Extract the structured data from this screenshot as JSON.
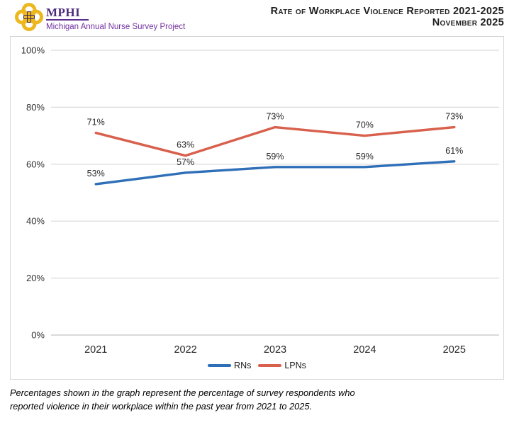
{
  "header": {
    "org": "MPHI",
    "project": "Michigan Annual Nurse Survey Project",
    "title_line1": "Rate of Workplace Violence Reported 2021-2025",
    "title_line2": "November 2025"
  },
  "colors": {
    "rn_blue": "#2E6FB8",
    "lpn_red": "#D8604C",
    "gridline": "#D9D9D9",
    "axis_line": "#C4C4C4",
    "tick_text": "#333333",
    "label_text": "#262626",
    "logo_gold": "#EDB71E",
    "logo_purple": "#4B2A7B",
    "project_purple": "#7030A0"
  },
  "chart_data": {
    "type": "line",
    "categories": [
      "2021",
      "2022",
      "2023",
      "2024",
      "2025"
    ],
    "series": [
      {
        "name": "RNs",
        "color": "#2E6FB8",
        "values": [
          53,
          57,
          59,
          59,
          61
        ]
      },
      {
        "name": "LPNs",
        "color": "#D8604C",
        "values": [
          71,
          63,
          73,
          70,
          73
        ]
      }
    ],
    "data_labels": [
      [
        "53%",
        "57%",
        "59%",
        "59%",
        "61%"
      ],
      [
        "71%",
        "63%",
        "73%",
        "70%",
        "73%"
      ]
    ],
    "title": "Rate of Workplace Violence Reported 2021-2025",
    "subtitle": "November 2025",
    "xlabel": "",
    "ylabel": "",
    "ylim": [
      0,
      100
    ],
    "yticks": [
      "0%",
      "20%",
      "40%",
      "60%",
      "80%",
      "100%"
    ],
    "grid": "horizontal",
    "legend_position": "bottom"
  },
  "footnote": {
    "line1": "Percentages shown in the graph represent the percentage of survey respondents who",
    "line2": "reported violence in their workplace within the past year from 2021 to 2025."
  }
}
